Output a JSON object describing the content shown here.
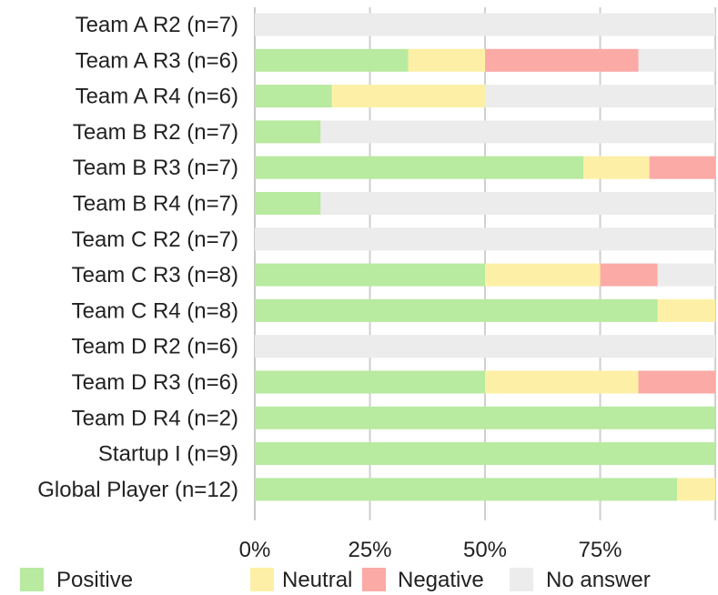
{
  "chart_data": {
    "type": "bar",
    "orientation": "horizontal",
    "stacked": true,
    "percent": true,
    "categories": [
      "Team A R2 (n=7)",
      "Team A R3 (n=6)",
      "Team A R4 (n=6)",
      "Team B R2 (n=7)",
      "Team B R3 (n=7)",
      "Team B R4 (n=7)",
      "Team C R2 (n=7)",
      "Team C R3 (n=8)",
      "Team C R4 (n=8)",
      "Team D R2 (n=6)",
      "Team D R3 (n=6)",
      "Team D R4 (n=2)",
      "Startup I (n=9)",
      "Global Player (n=12)"
    ],
    "series": [
      {
        "name": "Positive",
        "color": "#b8eaa0",
        "values": [
          0,
          33.3,
          16.7,
          14.3,
          71.4,
          14.3,
          0,
          50,
          87.5,
          0,
          50,
          100,
          100,
          91.7
        ]
      },
      {
        "name": "Neutral",
        "color": "#fdf0a6",
        "values": [
          0,
          16.7,
          33.3,
          0,
          14.3,
          0,
          0,
          25,
          12.5,
          0,
          33.3,
          0,
          0,
          8.3
        ]
      },
      {
        "name": "Negative",
        "color": "#fbaaa6",
        "values": [
          0,
          33.3,
          0,
          0,
          14.3,
          0,
          0,
          12.5,
          0,
          0,
          16.7,
          0,
          0,
          0
        ]
      },
      {
        "name": "No answer",
        "color": "#ececec",
        "values": [
          100,
          16.7,
          50,
          85.7,
          0,
          85.7,
          100,
          12.5,
          0,
          100,
          0,
          0,
          0,
          0
        ]
      }
    ],
    "xticks": [
      "0%",
      "25%",
      "50%",
      "75%"
    ],
    "xlim": [
      0,
      100
    ],
    "grid": true,
    "legend_position": "bottom"
  }
}
